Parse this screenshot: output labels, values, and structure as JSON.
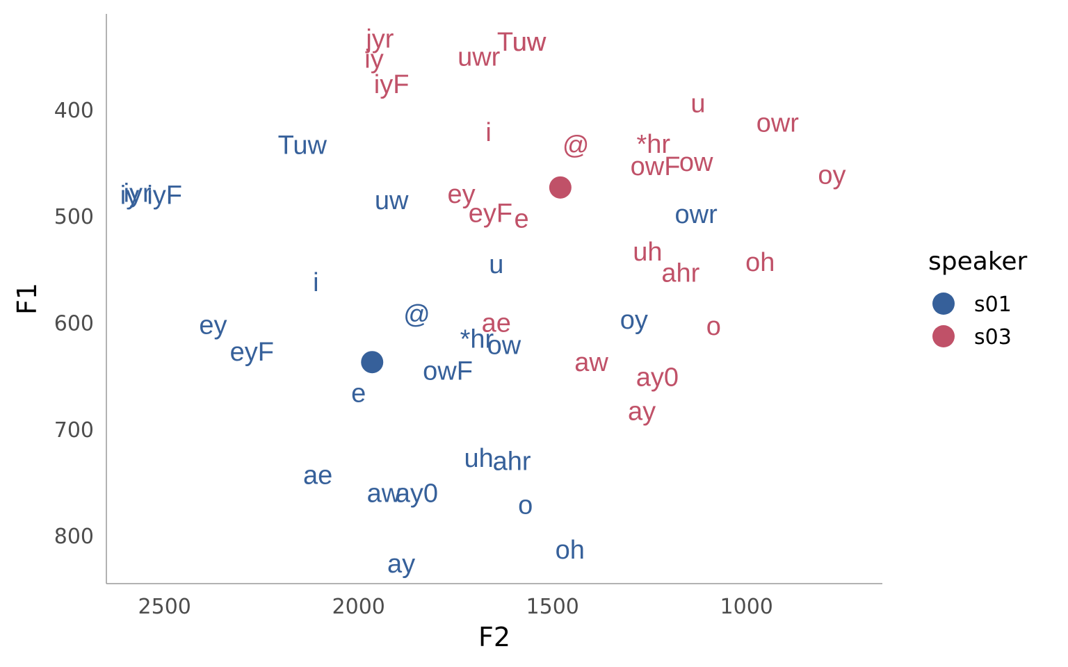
{
  "chart_data": {
    "type": "scatter",
    "title": "",
    "xlabel": "F2",
    "ylabel": "F1",
    "x_reversed": true,
    "y_reversed": true,
    "xlim": [
      2650,
      650
    ],
    "ylim": [
      310,
      845
    ],
    "x_ticks": [
      2500,
      2000,
      1500,
      1000
    ],
    "y_ticks": [
      400,
      500,
      600,
      700,
      800
    ],
    "grid": false,
    "legend": {
      "title": "speaker",
      "placement": "right",
      "entries": [
        {
          "label": "s01",
          "color": "#36609a"
        },
        {
          "label": "s03",
          "color": "#c05168"
        }
      ]
    },
    "series": [
      {
        "name": "s01",
        "color": "#36609a",
        "mean": {
          "x": 1965,
          "y": 637
        },
        "points": [
          {
            "label": "Tuw",
            "x": 2145,
            "y": 433
          },
          {
            "label": "iy",
            "x": 2590,
            "y": 480
          },
          {
            "label": "iyr",
            "x": 2570,
            "y": 478
          },
          {
            "label": "iyF",
            "x": 2500,
            "y": 480
          },
          {
            "label": "uw",
            "x": 1915,
            "y": 485
          },
          {
            "label": "i",
            "x": 2110,
            "y": 562
          },
          {
            "label": "@",
            "x": 1850,
            "y": 592
          },
          {
            "label": "ey",
            "x": 2375,
            "y": 602
          },
          {
            "label": "eyF",
            "x": 2275,
            "y": 627
          },
          {
            "label": "e",
            "x": 2000,
            "y": 666
          },
          {
            "label": "owF",
            "x": 1770,
            "y": 645
          },
          {
            "label": "*hr",
            "x": 1695,
            "y": 615
          },
          {
            "label": "ow",
            "x": 1625,
            "y": 621
          },
          {
            "label": "u",
            "x": 1645,
            "y": 545
          },
          {
            "label": "owr",
            "x": 1130,
            "y": 498
          },
          {
            "label": "oy",
            "x": 1290,
            "y": 597
          },
          {
            "label": "ae",
            "x": 2105,
            "y": 743
          },
          {
            "label": "uh",
            "x": 1690,
            "y": 727
          },
          {
            "label": "ahr",
            "x": 1605,
            "y": 730
          },
          {
            "label": "aw",
            "x": 1935,
            "y": 760
          },
          {
            "label": "ay0",
            "x": 1850,
            "y": 760
          },
          {
            "label": "o",
            "x": 1570,
            "y": 771
          },
          {
            "label": "oh",
            "x": 1455,
            "y": 813
          },
          {
            "label": "ay",
            "x": 1890,
            "y": 826
          }
        ]
      },
      {
        "name": "s03",
        "color": "#c05168",
        "mean": {
          "x": 1480,
          "y": 473
        },
        "points": [
          {
            "label": "jyr",
            "x": 1945,
            "y": 333
          },
          {
            "label": "iy",
            "x": 1960,
            "y": 352
          },
          {
            "label": "iyF",
            "x": 1915,
            "y": 376
          },
          {
            "label": "Tuw",
            "x": 1580,
            "y": 336
          },
          {
            "label": "uw",
            "x": 1560,
            "y": 336
          },
          {
            "label": "uwr",
            "x": 1690,
            "y": 350
          },
          {
            "label": "i",
            "x": 1665,
            "y": 421
          },
          {
            "label": "@",
            "x": 1440,
            "y": 433
          },
          {
            "label": "*hr",
            "x": 1240,
            "y": 432
          },
          {
            "label": "owF",
            "x": 1235,
            "y": 453
          },
          {
            "label": "ow",
            "x": 1130,
            "y": 449
          },
          {
            "label": "u",
            "x": 1125,
            "y": 394
          },
          {
            "label": "owr",
            "x": 920,
            "y": 412
          },
          {
            "label": "oy",
            "x": 780,
            "y": 461
          },
          {
            "label": "ey",
            "x": 1735,
            "y": 479
          },
          {
            "label": "eyF",
            "x": 1660,
            "y": 497
          },
          {
            "label": "e",
            "x": 1580,
            "y": 502
          },
          {
            "label": "uh",
            "x": 1255,
            "y": 533
          },
          {
            "label": "ahr",
            "x": 1170,
            "y": 553
          },
          {
            "label": "oh",
            "x": 965,
            "y": 543
          },
          {
            "label": "ae",
            "x": 1645,
            "y": 600
          },
          {
            "label": "o",
            "x": 1085,
            "y": 603
          },
          {
            "label": "aw",
            "x": 1400,
            "y": 637
          },
          {
            "label": "ay0",
            "x": 1230,
            "y": 651
          },
          {
            "label": "ay",
            "x": 1270,
            "y": 683
          }
        ]
      }
    ]
  }
}
